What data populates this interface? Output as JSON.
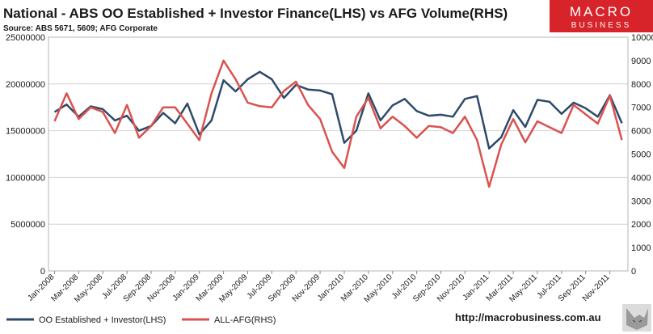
{
  "chart_data": {
    "type": "line",
    "title": "National - ABS OO Established + Investor Finance(LHS) vs AFG Volume(RHS)",
    "subtitle": "Source: ABS 5671, 5609; AFG Corporate",
    "url": "http://macrobusiness.com.au",
    "logo": {
      "line1": "MACRO",
      "line2": "BUSINESS"
    },
    "x": [
      "Jan-2008",
      "Feb-2008",
      "Mar-2008",
      "Apr-2008",
      "May-2008",
      "Jun-2008",
      "Jul-2008",
      "Aug-2008",
      "Sep-2008",
      "Oct-2008",
      "Nov-2008",
      "Dec-2008",
      "Jan-2009",
      "Feb-2009",
      "Mar-2009",
      "Apr-2009",
      "May-2009",
      "Jun-2009",
      "Jul-2009",
      "Aug-2009",
      "Sep-2009",
      "Oct-2009",
      "Nov-2009",
      "Dec-2009",
      "Jan-2010",
      "Feb-2010",
      "Mar-2010",
      "Apr-2010",
      "May-2010",
      "Jun-2010",
      "Jul-2010",
      "Aug-2010",
      "Sep-2010",
      "Oct-2010",
      "Nov-2010",
      "Dec-2010",
      "Jan-2011",
      "Feb-2011",
      "Mar-2011",
      "Apr-2011",
      "May-2011",
      "Jun-2011",
      "Jul-2011",
      "Aug-2011",
      "Sep-2011",
      "Oct-2011",
      "Nov-2011",
      "Dec-2011"
    ],
    "x_tick_labels": [
      "Jan-2008",
      "Mar-2008",
      "May-2008",
      "Jul-2008",
      "Sep-2008",
      "Nov-2008",
      "Jan-2009",
      "Mar-2009",
      "May-2009",
      "Jul-2009",
      "Sep-2009",
      "Nov-2009",
      "Jan-2010",
      "Mar-2010",
      "May-2010",
      "Jul-2010",
      "Sep-2010",
      "Nov-2010",
      "Jan-2011",
      "Mar-2011",
      "May-2011",
      "Jul-2011",
      "Sep-2011",
      "Nov-2011"
    ],
    "y_left": {
      "min": 0,
      "max": 25000000,
      "ticks": [
        "0",
        "5000000",
        "10000000",
        "15000000",
        "20000000",
        "25000000"
      ]
    },
    "y_right": {
      "min": 0,
      "max": 10000,
      "ticks": [
        "0",
        "1000",
        "2000",
        "3000",
        "4000",
        "5000",
        "6000",
        "7000",
        "8000",
        "9000",
        "10000"
      ]
    },
    "series": [
      {
        "name": "OO Established + Investor(LHS)",
        "axis": "left",
        "color": "#2e4a6b",
        "values": [
          17000000,
          17800000,
          16500000,
          17600000,
          17300000,
          16100000,
          16600000,
          15000000,
          15500000,
          16900000,
          15800000,
          17900000,
          14600000,
          16100000,
          20400000,
          19200000,
          20500000,
          21300000,
          20500000,
          18500000,
          19900000,
          19400000,
          19300000,
          18900000,
          13700000,
          15000000,
          19000000,
          16100000,
          17700000,
          18400000,
          17100000,
          16600000,
          16700000,
          16500000,
          18400000,
          18700000,
          13100000,
          14300000,
          17200000,
          15400000,
          18300000,
          18100000,
          16800000,
          18000000,
          17400000,
          16500000,
          18800000,
          15800000
        ]
      },
      {
        "name": "ALL-AFG(RHS)",
        "axis": "right",
        "color": "#d9534f",
        "values": [
          6400,
          7600,
          6500,
          7000,
          6800,
          5900,
          7100,
          5700,
          6200,
          7000,
          7000,
          6300,
          5600,
          7600,
          9000,
          8200,
          7200,
          7050,
          7000,
          7700,
          8100,
          7100,
          6500,
          5100,
          4400,
          6600,
          7400,
          6100,
          6600,
          6200,
          5700,
          6200,
          6150,
          5900,
          6600,
          5600,
          3600,
          5400,
          6500,
          5500,
          6400,
          6150,
          5900,
          7100,
          6700,
          6300,
          7500,
          5600
        ]
      }
    ],
    "grid": true,
    "legend_position": "bottom-left"
  }
}
